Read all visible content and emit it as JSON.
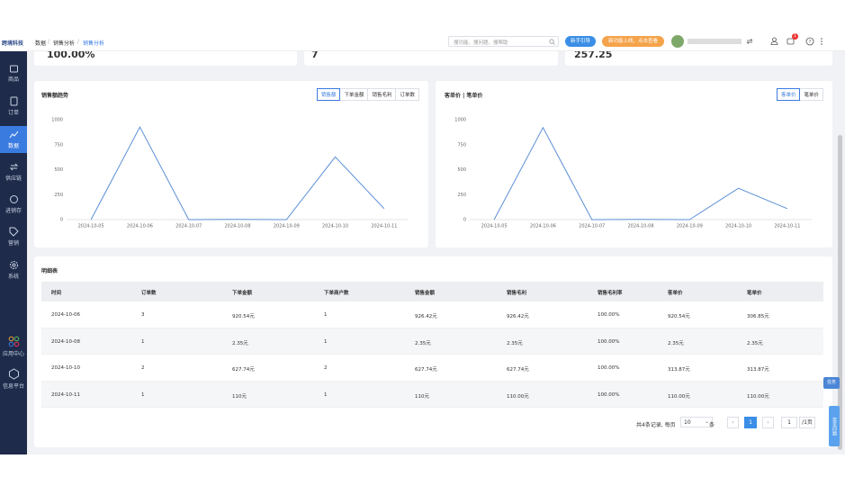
{
  "header": {
    "logo": "跨境科技",
    "breadcrumb": [
      "数据",
      "销售分析",
      "销售分析"
    ],
    "search_placeholder": "搜功能、搜问题、搜帮助",
    "guide_button": "新手引导",
    "news_button": "新功能上线，点击查看",
    "badge": "1"
  },
  "sidebar": {
    "items": [
      "商品",
      "订单",
      "数据",
      "供应链",
      "进销存",
      "营销",
      "系统"
    ],
    "bottom_items": [
      "应用中心",
      "信息平台"
    ]
  },
  "summary_cards": [
    "100.00%",
    "7",
    "257.25"
  ],
  "charts": [
    {
      "type": "line",
      "title": "销售额趋势",
      "tabs": [
        "销售额",
        "下单金额",
        "销售毛利",
        "订单数"
      ],
      "categories": [
        "2024-10-05",
        "2024-10-06",
        "2024-10-07",
        "2024-10-08",
        "2024-10-09",
        "2024-10-10",
        "2024-10-11"
      ],
      "values": [
        0,
        926.42,
        0,
        2.35,
        0,
        627.74,
        110
      ],
      "color": "#5b8fd6",
      "ylim": [
        0,
        1000
      ],
      "yticks": [
        0,
        250,
        500,
        750,
        1000
      ],
      "grid": false
    },
    {
      "type": "line",
      "title": "客单价 | 笔单价",
      "tabs": [
        "客单价",
        "笔单价"
      ],
      "categories": [
        "2024-10-05",
        "2024-10-06",
        "2024-10-07",
        "2024-10-08",
        "2024-10-09",
        "2024-10-10",
        "2024-10-11"
      ],
      "values": [
        0,
        920.54,
        0,
        2.35,
        0,
        313.87,
        110
      ],
      "color": "#5b8fd6",
      "ylim": [
        0,
        1000
      ],
      "yticks": [
        0,
        250,
        500,
        750,
        1000
      ],
      "grid": false
    }
  ],
  "table": {
    "title": "明细表",
    "headers": [
      "时间",
      "订单数",
      "下单金额",
      "下单商户数",
      "销售金额",
      "销售毛利",
      "销售毛利率",
      "客单价",
      "笔单价"
    ],
    "rows": [
      [
        "2024-10-06",
        "3",
        "920.54元",
        "1",
        "926.42元",
        "926.42元",
        "100.00%",
        "920.54元",
        "306.85元"
      ],
      [
        "2024-10-08",
        "1",
        "2.35元",
        "1",
        "2.35元",
        "2.35元",
        "100.00%",
        "2.35元",
        "2.35元"
      ],
      [
        "2024-10-10",
        "2",
        "627.74元",
        "2",
        "627.74元",
        "627.74元",
        "100.00%",
        "313.87元",
        "313.87元"
      ],
      [
        "2024-10-11",
        "1",
        "110元",
        "1",
        "110元",
        "110.00元",
        "100.00%",
        "110.00元",
        "110.00元"
      ]
    ]
  },
  "pagination": {
    "summary": "共4条记录, 每页",
    "page_size": "10",
    "unit": "条",
    "current": "1",
    "jump": "1",
    "total": "/1页"
  },
  "floating": {
    "task": "任务",
    "help": "常见问题"
  }
}
